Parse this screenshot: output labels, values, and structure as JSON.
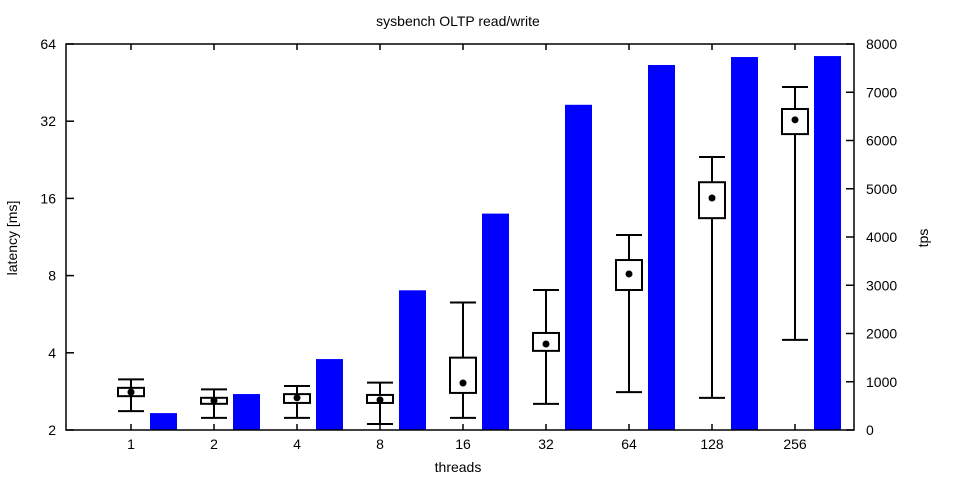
{
  "chart_data": {
    "type": "bar",
    "title": "sysbench OLTP read/write",
    "xlabel": "threads",
    "ylabel": "latency [ms]",
    "y2label": "tps",
    "categories": [
      "1",
      "2",
      "4",
      "8",
      "16",
      "32",
      "64",
      "128",
      "256"
    ],
    "y_scale": "log2",
    "ylim": [
      2,
      64
    ],
    "yticks": [
      2,
      4,
      8,
      16,
      32,
      64
    ],
    "y2lim": [
      0,
      8000
    ],
    "y2ticks": [
      0,
      1000,
      2000,
      3000,
      4000,
      5000,
      6000,
      7000,
      8000
    ],
    "grid": false,
    "colors": {
      "tps_bar": "#0000ff",
      "box": "#000000"
    },
    "series": [
      {
        "type": "boxplot",
        "axis": "left",
        "whisker_low": [
          2.37,
          2.23,
          2.23,
          2.11,
          2.23,
          2.53,
          2.81,
          2.67,
          4.49
        ],
        "box_low": [
          2.71,
          2.53,
          2.55,
          2.55,
          2.79,
          4.07,
          7.03,
          13.4,
          28.5
        ],
        "median": [
          2.81,
          2.6,
          2.67,
          2.62,
          3.05,
          4.33,
          8.12,
          16.06,
          32.4
        ],
        "box_high": [
          2.92,
          2.67,
          2.76,
          2.74,
          3.83,
          4.78,
          9.2,
          18.5,
          35.7
        ],
        "whisker_high": [
          3.15,
          2.88,
          2.97,
          3.06,
          6.28,
          7.03,
          11.52,
          23.2,
          43.5
        ]
      },
      {
        "type": "bar",
        "axis": "right",
        "values": [
          350,
          745,
          1470,
          2895,
          4485,
          6740,
          7565,
          7730,
          7750
        ]
      }
    ]
  }
}
